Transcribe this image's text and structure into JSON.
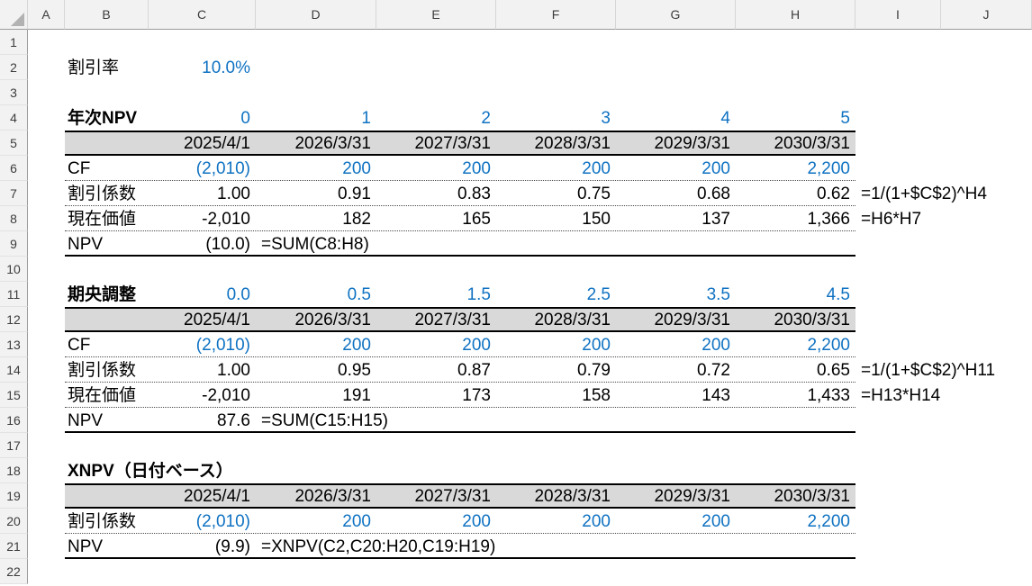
{
  "sheet": {
    "column_headers": [
      "A",
      "B",
      "C",
      "D",
      "E",
      "F",
      "G",
      "H",
      "I",
      "J"
    ],
    "row_headers": [
      "1",
      "2",
      "3",
      "4",
      "5",
      "6",
      "7",
      "8",
      "9",
      "10",
      "11",
      "12",
      "13",
      "14",
      "15",
      "16",
      "17",
      "18",
      "19",
      "20",
      "21",
      "22"
    ],
    "colors": {
      "input_blue": "#0f72c2",
      "band_gray": "#d9d9d9",
      "header_gray": "#f2f2f2",
      "text_black": "#000000"
    },
    "cells": [
      {
        "r": 2,
        "c": "B",
        "t": "割引率",
        "k": "lb"
      },
      {
        "r": 2,
        "c": "C",
        "t": "10.0%",
        "k": "nb"
      },
      {
        "r": 4,
        "c": "B",
        "t": "年次NPV",
        "k": "bd"
      },
      {
        "r": 4,
        "c": "C",
        "t": "0",
        "k": "nb"
      },
      {
        "r": 4,
        "c": "D",
        "t": "1",
        "k": "nb"
      },
      {
        "r": 4,
        "c": "E",
        "t": "2",
        "k": "nb"
      },
      {
        "r": 4,
        "c": "F",
        "t": "3",
        "k": "nb"
      },
      {
        "r": 4,
        "c": "G",
        "t": "4",
        "k": "nb"
      },
      {
        "r": 4,
        "c": "H",
        "t": "5",
        "k": "nb"
      },
      {
        "r": 5,
        "c": "C",
        "t": "2025/4/1",
        "k": "dt"
      },
      {
        "r": 5,
        "c": "D",
        "t": "2026/3/31",
        "k": "dt"
      },
      {
        "r": 5,
        "c": "E",
        "t": "2027/3/31",
        "k": "dt"
      },
      {
        "r": 5,
        "c": "F",
        "t": "2028/3/31",
        "k": "dt"
      },
      {
        "r": 5,
        "c": "G",
        "t": "2029/3/31",
        "k": "dt"
      },
      {
        "r": 5,
        "c": "H",
        "t": "2030/3/31",
        "k": "dt"
      },
      {
        "r": 6,
        "c": "B",
        "t": "CF",
        "k": "lb"
      },
      {
        "r": 6,
        "c": "C",
        "t": "(2,010)",
        "k": "nb"
      },
      {
        "r": 6,
        "c": "D",
        "t": "200",
        "k": "nb"
      },
      {
        "r": 6,
        "c": "E",
        "t": "200",
        "k": "nb"
      },
      {
        "r": 6,
        "c": "F",
        "t": "200",
        "k": "nb"
      },
      {
        "r": 6,
        "c": "G",
        "t": "200",
        "k": "nb"
      },
      {
        "r": 6,
        "c": "H",
        "t": "2,200",
        "k": "nb"
      },
      {
        "r": 7,
        "c": "B",
        "t": "割引係数",
        "k": "lb"
      },
      {
        "r": 7,
        "c": "C",
        "t": "1.00",
        "k": "nk"
      },
      {
        "r": 7,
        "c": "D",
        "t": "0.91",
        "k": "nk"
      },
      {
        "r": 7,
        "c": "E",
        "t": "0.83",
        "k": "nk"
      },
      {
        "r": 7,
        "c": "F",
        "t": "0.75",
        "k": "nk"
      },
      {
        "r": 7,
        "c": "G",
        "t": "0.68",
        "k": "nk"
      },
      {
        "r": 7,
        "c": "H",
        "t": "0.62",
        "k": "nk"
      },
      {
        "r": 7,
        "c": "I",
        "t": "=1/(1+$C$2)^H4",
        "k": "fm"
      },
      {
        "r": 8,
        "c": "B",
        "t": "現在価値",
        "k": "lb"
      },
      {
        "r": 8,
        "c": "C",
        "t": "-2,010",
        "k": "nk"
      },
      {
        "r": 8,
        "c": "D",
        "t": "182",
        "k": "nk"
      },
      {
        "r": 8,
        "c": "E",
        "t": "165",
        "k": "nk"
      },
      {
        "r": 8,
        "c": "F",
        "t": "150",
        "k": "nk"
      },
      {
        "r": 8,
        "c": "G",
        "t": "137",
        "k": "nk"
      },
      {
        "r": 8,
        "c": "H",
        "t": "1,366",
        "k": "nk"
      },
      {
        "r": 8,
        "c": "I",
        "t": "=H6*H7",
        "k": "fm"
      },
      {
        "r": 9,
        "c": "B",
        "t": "NPV",
        "k": "lb"
      },
      {
        "r": 9,
        "c": "C",
        "t": "(10.0)",
        "k": "nk"
      },
      {
        "r": 9,
        "c": "D",
        "t": "=SUM(C8:H8)",
        "k": "fm"
      },
      {
        "r": 11,
        "c": "B",
        "t": "期央調整",
        "k": "bd"
      },
      {
        "r": 11,
        "c": "C",
        "t": "0.0",
        "k": "nb"
      },
      {
        "r": 11,
        "c": "D",
        "t": "0.5",
        "k": "nb"
      },
      {
        "r": 11,
        "c": "E",
        "t": "1.5",
        "k": "nb"
      },
      {
        "r": 11,
        "c": "F",
        "t": "2.5",
        "k": "nb"
      },
      {
        "r": 11,
        "c": "G",
        "t": "3.5",
        "k": "nb"
      },
      {
        "r": 11,
        "c": "H",
        "t": "4.5",
        "k": "nb"
      },
      {
        "r": 12,
        "c": "C",
        "t": "2025/4/1",
        "k": "dt"
      },
      {
        "r": 12,
        "c": "D",
        "t": "2026/3/31",
        "k": "dt"
      },
      {
        "r": 12,
        "c": "E",
        "t": "2027/3/31",
        "k": "dt"
      },
      {
        "r": 12,
        "c": "F",
        "t": "2028/3/31",
        "k": "dt"
      },
      {
        "r": 12,
        "c": "G",
        "t": "2029/3/31",
        "k": "dt"
      },
      {
        "r": 12,
        "c": "H",
        "t": "2030/3/31",
        "k": "dt"
      },
      {
        "r": 13,
        "c": "B",
        "t": "CF",
        "k": "lb"
      },
      {
        "r": 13,
        "c": "C",
        "t": "(2,010)",
        "k": "nb"
      },
      {
        "r": 13,
        "c": "D",
        "t": "200",
        "k": "nb"
      },
      {
        "r": 13,
        "c": "E",
        "t": "200",
        "k": "nb"
      },
      {
        "r": 13,
        "c": "F",
        "t": "200",
        "k": "nb"
      },
      {
        "r": 13,
        "c": "G",
        "t": "200",
        "k": "nb"
      },
      {
        "r": 13,
        "c": "H",
        "t": "2,200",
        "k": "nb"
      },
      {
        "r": 14,
        "c": "B",
        "t": "割引係数",
        "k": "lb"
      },
      {
        "r": 14,
        "c": "C",
        "t": "1.00",
        "k": "nk"
      },
      {
        "r": 14,
        "c": "D",
        "t": "0.95",
        "k": "nk"
      },
      {
        "r": 14,
        "c": "E",
        "t": "0.87",
        "k": "nk"
      },
      {
        "r": 14,
        "c": "F",
        "t": "0.79",
        "k": "nk"
      },
      {
        "r": 14,
        "c": "G",
        "t": "0.72",
        "k": "nk"
      },
      {
        "r": 14,
        "c": "H",
        "t": "0.65",
        "k": "nk"
      },
      {
        "r": 14,
        "c": "I",
        "t": "=1/(1+$C$2)^H11",
        "k": "fm"
      },
      {
        "r": 15,
        "c": "B",
        "t": "現在価値",
        "k": "lb"
      },
      {
        "r": 15,
        "c": "C",
        "t": "-2,010",
        "k": "nk"
      },
      {
        "r": 15,
        "c": "D",
        "t": "191",
        "k": "nk"
      },
      {
        "r": 15,
        "c": "E",
        "t": "173",
        "k": "nk"
      },
      {
        "r": 15,
        "c": "F",
        "t": "158",
        "k": "nk"
      },
      {
        "r": 15,
        "c": "G",
        "t": "143",
        "k": "nk"
      },
      {
        "r": 15,
        "c": "H",
        "t": "1,433",
        "k": "nk"
      },
      {
        "r": 15,
        "c": "I",
        "t": "=H13*H14",
        "k": "fm"
      },
      {
        "r": 16,
        "c": "B",
        "t": "NPV",
        "k": "lb"
      },
      {
        "r": 16,
        "c": "C",
        "t": "87.6",
        "k": "nk"
      },
      {
        "r": 16,
        "c": "D",
        "t": "=SUM(C15:H15)",
        "k": "fm"
      },
      {
        "r": 18,
        "c": "B",
        "t": "XNPV（日付ベース）",
        "k": "bd"
      },
      {
        "r": 19,
        "c": "C",
        "t": "2025/4/1",
        "k": "dt"
      },
      {
        "r": 19,
        "c": "D",
        "t": "2026/3/31",
        "k": "dt"
      },
      {
        "r": 19,
        "c": "E",
        "t": "2027/3/31",
        "k": "dt"
      },
      {
        "r": 19,
        "c": "F",
        "t": "2028/3/31",
        "k": "dt"
      },
      {
        "r": 19,
        "c": "G",
        "t": "2029/3/31",
        "k": "dt"
      },
      {
        "r": 19,
        "c": "H",
        "t": "2030/3/31",
        "k": "dt"
      },
      {
        "r": 20,
        "c": "B",
        "t": "割引係数",
        "k": "lb"
      },
      {
        "r": 20,
        "c": "C",
        "t": "(2,010)",
        "k": "nb"
      },
      {
        "r": 20,
        "c": "D",
        "t": "200",
        "k": "nb"
      },
      {
        "r": 20,
        "c": "E",
        "t": "200",
        "k": "nb"
      },
      {
        "r": 20,
        "c": "F",
        "t": "200",
        "k": "nb"
      },
      {
        "r": 20,
        "c": "G",
        "t": "200",
        "k": "nb"
      },
      {
        "r": 20,
        "c": "H",
        "t": "2,200",
        "k": "nb"
      },
      {
        "r": 21,
        "c": "B",
        "t": "NPV",
        "k": "lb"
      },
      {
        "r": 21,
        "c": "C",
        "t": "(9.9)",
        "k": "nk"
      },
      {
        "r": 21,
        "c": "D",
        "t": "=XNPV(C2,C20:H20,C19:H19)",
        "k": "fm"
      }
    ]
  }
}
